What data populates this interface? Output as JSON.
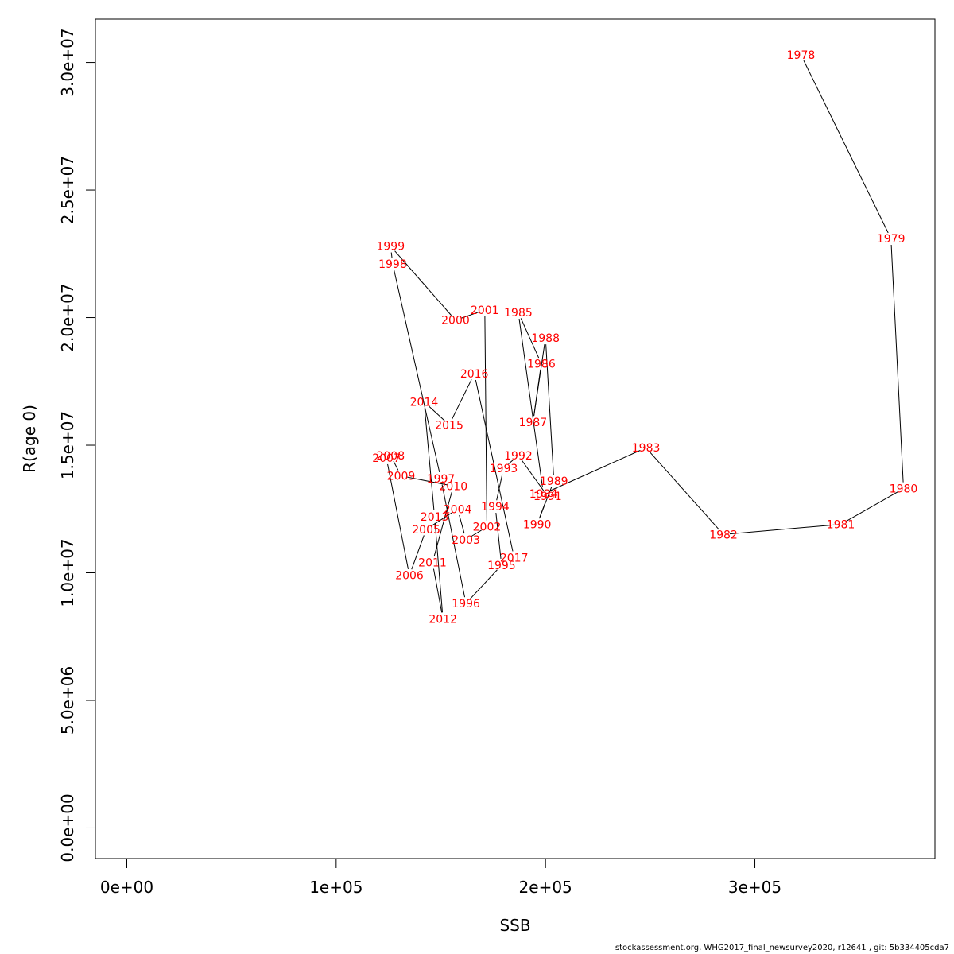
{
  "footer": "stockassessment.org, WHG2017_final_newsurvey2020, r12641 , git: 5b334405cda7",
  "chart_data": {
    "type": "line",
    "title": "",
    "xlabel": "SSB",
    "ylabel": "R(age 0)",
    "xlim": [
      -15000,
      386000
    ],
    "ylim": [
      -1200000,
      31700000
    ],
    "x_ticks": [
      0,
      100000,
      200000,
      300000
    ],
    "x_tick_labels": [
      "0e+00",
      "1e+05",
      "2e+05",
      "3e+05"
    ],
    "y_ticks": [
      0,
      5000000,
      10000000,
      15000000,
      20000000,
      25000000,
      30000000
    ],
    "y_tick_labels": [
      "0.0e+00",
      "5.0e+06",
      "1.0e+07",
      "1.5e+07",
      "2.0e+07",
      "2.5e+07",
      "3.0e+07"
    ],
    "grid": false,
    "legend": "none",
    "line_color": "#000000",
    "label_color": "#ff0000",
    "points": [
      {
        "year": "1978",
        "x": 322000,
        "y": 30300000
      },
      {
        "year": "1979",
        "x": 365000,
        "y": 23100000
      },
      {
        "year": "1980",
        "x": 371000,
        "y": 13300000
      },
      {
        "year": "1981",
        "x": 341000,
        "y": 11900000
      },
      {
        "year": "1982",
        "x": 285000,
        "y": 11500000
      },
      {
        "year": "1983",
        "x": 248000,
        "y": 14900000
      },
      {
        "year": "1984",
        "x": 199000,
        "y": 13100000
      },
      {
        "year": "1985",
        "x": 187000,
        "y": 20200000
      },
      {
        "year": "1986",
        "x": 198000,
        "y": 18200000
      },
      {
        "year": "1987",
        "x": 194000,
        "y": 15900000
      },
      {
        "year": "1988",
        "x": 200000,
        "y": 19200000
      },
      {
        "year": "1989",
        "x": 204000,
        "y": 13600000
      },
      {
        "year": "1990",
        "x": 196000,
        "y": 11900000
      },
      {
        "year": "1991",
        "x": 201000,
        "y": 13000000
      },
      {
        "year": "1992",
        "x": 187000,
        "y": 14600000
      },
      {
        "year": "1993",
        "x": 180000,
        "y": 14100000
      },
      {
        "year": "1994",
        "x": 176000,
        "y": 12600000
      },
      {
        "year": "1995",
        "x": 179000,
        "y": 10300000
      },
      {
        "year": "1996",
        "x": 162000,
        "y": 8800000
      },
      {
        "year": "1997",
        "x": 150000,
        "y": 13700000
      },
      {
        "year": "1998",
        "x": 127000,
        "y": 22100000
      },
      {
        "year": "1999",
        "x": 126000,
        "y": 22800000
      },
      {
        "year": "2000",
        "x": 157000,
        "y": 19900000
      },
      {
        "year": "2001",
        "x": 171000,
        "y": 20300000
      },
      {
        "year": "2002",
        "x": 172000,
        "y": 11800000
      },
      {
        "year": "2003",
        "x": 162000,
        "y": 11300000
      },
      {
        "year": "2004",
        "x": 158000,
        "y": 12500000
      },
      {
        "year": "2005",
        "x": 143000,
        "y": 11700000
      },
      {
        "year": "2006",
        "x": 135000,
        "y": 9900000
      },
      {
        "year": "2007",
        "x": 124000,
        "y": 14500000
      },
      {
        "year": "2008",
        "x": 126000,
        "y": 14600000
      },
      {
        "year": "2009",
        "x": 131000,
        "y": 13800000
      },
      {
        "year": "2010",
        "x": 156000,
        "y": 13400000
      },
      {
        "year": "2011",
        "x": 146000,
        "y": 10400000
      },
      {
        "year": "2012",
        "x": 151000,
        "y": 8200000
      },
      {
        "year": "2013",
        "x": 147000,
        "y": 12200000
      },
      {
        "year": "2014",
        "x": 142000,
        "y": 16700000
      },
      {
        "year": "2015",
        "x": 154000,
        "y": 15800000
      },
      {
        "year": "2016",
        "x": 166000,
        "y": 17800000
      },
      {
        "year": "2017",
        "x": 185000,
        "y": 10600000
      }
    ]
  }
}
